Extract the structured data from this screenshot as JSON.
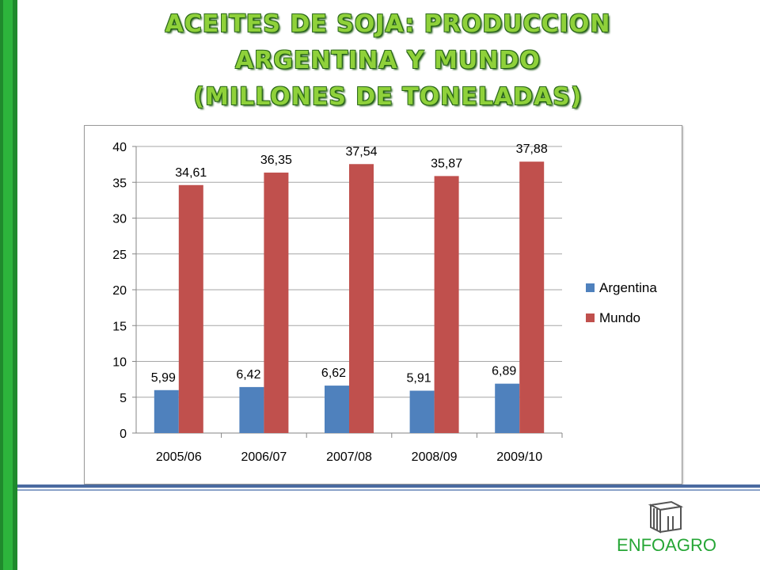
{
  "title_lines": [
    "ACEITES DE SOJA: PRODUCCION",
    "ARGENTINA Y  MUNDO",
    "(MILLONES DE TONELADAS)"
  ],
  "logo": {
    "text": "ENFOAGRO",
    "icon": "cube-icon"
  },
  "colors": {
    "argentina": "#4f81bd",
    "mundo": "#c0504d",
    "title": "#8fd13a",
    "accent": "#2db43c"
  },
  "chart_data": {
    "type": "bar",
    "categories": [
      "2005/06",
      "2006/07",
      "2007/08",
      "2008/09",
      "2009/10"
    ],
    "series": [
      {
        "name": "Argentina",
        "values": [
          5.99,
          6.42,
          6.62,
          5.91,
          6.89
        ],
        "labels": [
          "5,99",
          "6,42",
          "6,62",
          "5,91",
          "6,89"
        ]
      },
      {
        "name": "Mundo",
        "values": [
          34.61,
          36.35,
          37.54,
          35.87,
          37.88
        ],
        "labels": [
          "34,61",
          "36,35",
          "37,54",
          "35,87",
          "37,88"
        ]
      }
    ],
    "y_ticks": [
      "0",
      "5",
      "10",
      "15",
      "20",
      "25",
      "30",
      "35",
      "40"
    ],
    "ylim": [
      0,
      40
    ],
    "grid": true,
    "legend_position": "right"
  }
}
